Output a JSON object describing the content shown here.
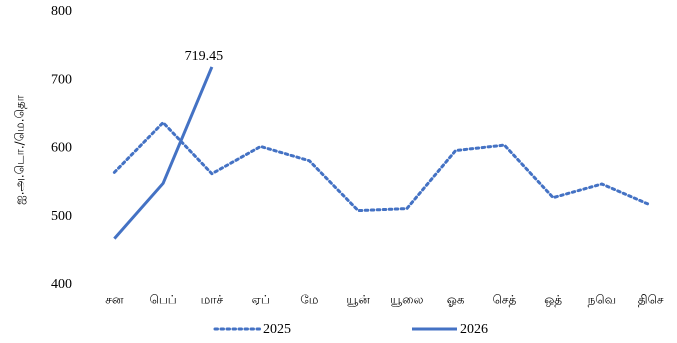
{
  "chart_data": {
    "type": "line",
    "y_label": "ஐ.அ.டொ./மெ.தொ",
    "categories": [
      "சன",
      "பெப்",
      "மாச்",
      "ஏப்",
      "மே",
      "யூன்",
      "யூலை",
      "ஓக",
      "செத்",
      "ஒத்",
      "நவெ",
      "திசெ"
    ],
    "series": [
      {
        "name": "2025",
        "color": "#4472c4",
        "style": "dotted",
        "values": [
          565,
          638,
          563,
          603,
          582,
          509,
          512,
          597,
          605,
          528,
          548,
          517
        ]
      },
      {
        "name": "2026",
        "color": "#4472c4",
        "style": "solid",
        "values": [
          468,
          549,
          719.45,
          null,
          null,
          null,
          null,
          null,
          null,
          null,
          null,
          null
        ],
        "labeled_point": 2
      }
    ],
    "ylim": [
      400,
      800
    ],
    "yticks": [
      400,
      500,
      600,
      700,
      800
    ],
    "grid": false,
    "legend": "bottom"
  }
}
